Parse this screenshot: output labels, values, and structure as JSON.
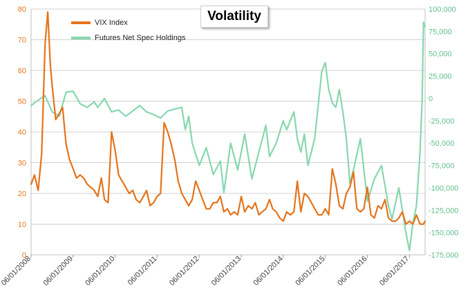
{
  "chart_data": {
    "type": "line",
    "title": "Volatility",
    "colors": {
      "vix": "#E4731A",
      "futures": "#86D7AE",
      "grid": "#d0d0d0"
    },
    "legend": {
      "placement": "top-left"
    },
    "x": {
      "start": "2008-06-01",
      "end": "2017-10-15",
      "ticks": [
        "06/01/2008",
        "06/01/2009",
        "06/01/2010",
        "06/01/2011",
        "06/01/2012",
        "06/01/2013",
        "06/01/2014",
        "06/01/2015",
        "06/01/2016",
        "06/01/2017"
      ]
    },
    "y_left": {
      "range": [
        0,
        80
      ],
      "ticks": [
        "0",
        "10",
        "20",
        "30",
        "40",
        "50",
        "60",
        "70",
        "80"
      ],
      "grid": true
    },
    "y_right": {
      "range": [
        -175000,
        100000
      ],
      "ticks": [
        "-175,000",
        "-150,000",
        "-125,000",
        "-100,000",
        "-75,000",
        "-50,000",
        "-25,000",
        "0",
        "25,000",
        "50,000",
        "75,000",
        "100,000"
      ]
    },
    "series": [
      {
        "name": "VIX Index",
        "axis": "left",
        "color": "#E4731A",
        "points": [
          [
            "2008-06-01",
            23
          ],
          [
            "2008-07-01",
            26
          ],
          [
            "2008-08-01",
            21
          ],
          [
            "2008-09-01",
            33
          ],
          [
            "2008-10-01",
            69
          ],
          [
            "2008-10-24",
            79
          ],
          [
            "2008-11-15",
            62
          ],
          [
            "2008-12-01",
            55
          ],
          [
            "2009-01-01",
            44
          ],
          [
            "2009-02-01",
            46
          ],
          [
            "2009-03-01",
            48
          ],
          [
            "2009-04-01",
            36
          ],
          [
            "2009-05-01",
            31
          ],
          [
            "2009-06-01",
            28
          ],
          [
            "2009-07-01",
            25
          ],
          [
            "2009-08-01",
            26
          ],
          [
            "2009-09-01",
            25
          ],
          [
            "2009-10-01",
            23
          ],
          [
            "2009-11-01",
            22
          ],
          [
            "2009-12-01",
            21
          ],
          [
            "2010-01-01",
            19
          ],
          [
            "2010-02-01",
            25
          ],
          [
            "2010-03-01",
            18
          ],
          [
            "2010-04-01",
            17
          ],
          [
            "2010-05-01",
            40
          ],
          [
            "2010-06-01",
            34
          ],
          [
            "2010-07-01",
            26
          ],
          [
            "2010-08-01",
            24
          ],
          [
            "2010-09-01",
            22
          ],
          [
            "2010-10-01",
            20
          ],
          [
            "2010-11-01",
            21
          ],
          [
            "2010-12-01",
            18
          ],
          [
            "2011-01-01",
            17
          ],
          [
            "2011-02-01",
            19
          ],
          [
            "2011-03-01",
            21
          ],
          [
            "2011-04-01",
            16
          ],
          [
            "2011-05-01",
            17
          ],
          [
            "2011-06-01",
            19
          ],
          [
            "2011-07-01",
            20
          ],
          [
            "2011-08-01",
            43
          ],
          [
            "2011-09-01",
            40
          ],
          [
            "2011-10-01",
            36
          ],
          [
            "2011-11-01",
            31
          ],
          [
            "2011-12-01",
            24
          ],
          [
            "2012-01-01",
            20
          ],
          [
            "2012-02-01",
            18
          ],
          [
            "2012-03-01",
            16
          ],
          [
            "2012-04-01",
            18
          ],
          [
            "2012-05-01",
            24
          ],
          [
            "2012-06-01",
            21
          ],
          [
            "2012-07-01",
            18
          ],
          [
            "2012-08-01",
            15
          ],
          [
            "2012-09-01",
            15
          ],
          [
            "2012-10-01",
            17
          ],
          [
            "2012-11-01",
            17
          ],
          [
            "2012-12-01",
            19
          ],
          [
            "2013-01-01",
            14
          ],
          [
            "2013-02-01",
            15
          ],
          [
            "2013-03-01",
            13
          ],
          [
            "2013-04-01",
            14
          ],
          [
            "2013-05-01",
            13
          ],
          [
            "2013-06-01",
            19
          ],
          [
            "2013-07-01",
            14
          ],
          [
            "2013-08-01",
            16
          ],
          [
            "2013-09-01",
            15
          ],
          [
            "2013-10-01",
            17
          ],
          [
            "2013-11-01",
            13
          ],
          [
            "2013-12-01",
            14
          ],
          [
            "2014-01-01",
            15
          ],
          [
            "2014-02-01",
            18
          ],
          [
            "2014-03-01",
            15
          ],
          [
            "2014-04-01",
            14
          ],
          [
            "2014-05-01",
            12
          ],
          [
            "2014-06-01",
            11
          ],
          [
            "2014-07-01",
            14
          ],
          [
            "2014-08-01",
            13
          ],
          [
            "2014-09-01",
            14
          ],
          [
            "2014-10-01",
            24
          ],
          [
            "2014-11-01",
            14
          ],
          [
            "2014-12-01",
            20
          ],
          [
            "2015-01-01",
            19
          ],
          [
            "2015-02-01",
            17
          ],
          [
            "2015-03-01",
            15
          ],
          [
            "2015-04-01",
            13
          ],
          [
            "2015-05-01",
            13
          ],
          [
            "2015-06-01",
            15
          ],
          [
            "2015-07-01",
            13
          ],
          [
            "2015-08-01",
            28
          ],
          [
            "2015-09-01",
            23
          ],
          [
            "2015-10-01",
            16
          ],
          [
            "2015-11-01",
            15
          ],
          [
            "2015-12-01",
            20
          ],
          [
            "2016-01-01",
            22
          ],
          [
            "2016-02-01",
            27
          ],
          [
            "2016-03-01",
            15
          ],
          [
            "2016-04-01",
            14
          ],
          [
            "2016-05-01",
            15
          ],
          [
            "2016-06-01",
            22
          ],
          [
            "2016-07-01",
            13
          ],
          [
            "2016-08-01",
            12
          ],
          [
            "2016-09-01",
            16
          ],
          [
            "2016-10-01",
            15
          ],
          [
            "2016-11-01",
            18
          ],
          [
            "2016-12-01",
            12
          ],
          [
            "2017-01-01",
            11
          ],
          [
            "2017-02-01",
            11
          ],
          [
            "2017-03-01",
            12
          ],
          [
            "2017-04-01",
            14
          ],
          [
            "2017-05-01",
            10
          ],
          [
            "2017-06-01",
            11
          ],
          [
            "2017-07-01",
            10
          ],
          [
            "2017-08-01",
            13
          ],
          [
            "2017-09-01",
            10
          ],
          [
            "2017-10-01",
            10
          ],
          [
            "2017-10-15",
            11
          ]
        ]
      },
      {
        "name": "Futures Net Spec Holdings",
        "axis": "right",
        "color": "#86D7AE",
        "points": [
          [
            "2008-06-01",
            -8000
          ],
          [
            "2008-08-01",
            -2000
          ],
          [
            "2008-10-01",
            3000
          ],
          [
            "2008-12-01",
            -15000
          ],
          [
            "2009-02-01",
            -20000
          ],
          [
            "2009-04-01",
            7000
          ],
          [
            "2009-06-01",
            8000
          ],
          [
            "2009-08-01",
            -6000
          ],
          [
            "2009-10-01",
            -10000
          ],
          [
            "2009-12-01",
            -4000
          ],
          [
            "2010-01-01",
            -10000
          ],
          [
            "2010-03-01",
            0
          ],
          [
            "2010-05-01",
            -15000
          ],
          [
            "2010-07-01",
            -13000
          ],
          [
            "2010-09-01",
            -20000
          ],
          [
            "2010-11-01",
            -14000
          ],
          [
            "2011-01-01",
            -8000
          ],
          [
            "2011-03-01",
            -15000
          ],
          [
            "2011-05-01",
            -18000
          ],
          [
            "2011-07-01",
            -22000
          ],
          [
            "2011-09-01",
            -14000
          ],
          [
            "2011-11-01",
            -12000
          ],
          [
            "2012-01-01",
            -10000
          ],
          [
            "2012-02-01",
            -35000
          ],
          [
            "2012-03-01",
            -20000
          ],
          [
            "2012-04-01",
            -50000
          ],
          [
            "2012-06-01",
            -75000
          ],
          [
            "2012-08-01",
            -55000
          ],
          [
            "2012-10-01",
            -85000
          ],
          [
            "2012-12-01",
            -70000
          ],
          [
            "2013-01-01",
            -105000
          ],
          [
            "2013-03-01",
            -50000
          ],
          [
            "2013-05-01",
            -80000
          ],
          [
            "2013-07-01",
            -40000
          ],
          [
            "2013-09-01",
            -90000
          ],
          [
            "2013-11-01",
            -60000
          ],
          [
            "2014-01-01",
            -30000
          ],
          [
            "2014-02-01",
            -65000
          ],
          [
            "2014-04-01",
            -50000
          ],
          [
            "2014-06-01",
            -25000
          ],
          [
            "2014-07-01",
            -35000
          ],
          [
            "2014-09-01",
            -15000
          ],
          [
            "2014-10-01",
            -45000
          ],
          [
            "2014-11-01",
            -60000
          ],
          [
            "2014-12-01",
            -40000
          ],
          [
            "2015-01-01",
            -75000
          ],
          [
            "2015-03-01",
            -45000
          ],
          [
            "2015-05-01",
            30000
          ],
          [
            "2015-06-01",
            40000
          ],
          [
            "2015-07-01",
            10000
          ],
          [
            "2015-08-01",
            -5000
          ],
          [
            "2015-09-01",
            -10000
          ],
          [
            "2015-10-01",
            10000
          ],
          [
            "2015-11-01",
            -15000
          ],
          [
            "2015-12-01",
            -45000
          ],
          [
            "2016-01-01",
            -95000
          ],
          [
            "2016-02-01",
            -80000
          ],
          [
            "2016-04-01",
            -45000
          ],
          [
            "2016-06-01",
            -115000
          ],
          [
            "2016-08-01",
            -90000
          ],
          [
            "2016-10-01",
            -75000
          ],
          [
            "2016-12-01",
            -120000
          ],
          [
            "2017-01-01",
            -135000
          ],
          [
            "2017-03-01",
            -100000
          ],
          [
            "2017-05-01",
            -150000
          ],
          [
            "2017-06-01",
            -170000
          ],
          [
            "2017-07-01",
            -140000
          ],
          [
            "2017-08-01",
            -120000
          ],
          [
            "2017-09-01",
            -60000
          ],
          [
            "2017-09-20",
            0
          ],
          [
            "2017-10-01",
            85000
          ],
          [
            "2017-10-15",
            80000
          ]
        ]
      }
    ]
  }
}
